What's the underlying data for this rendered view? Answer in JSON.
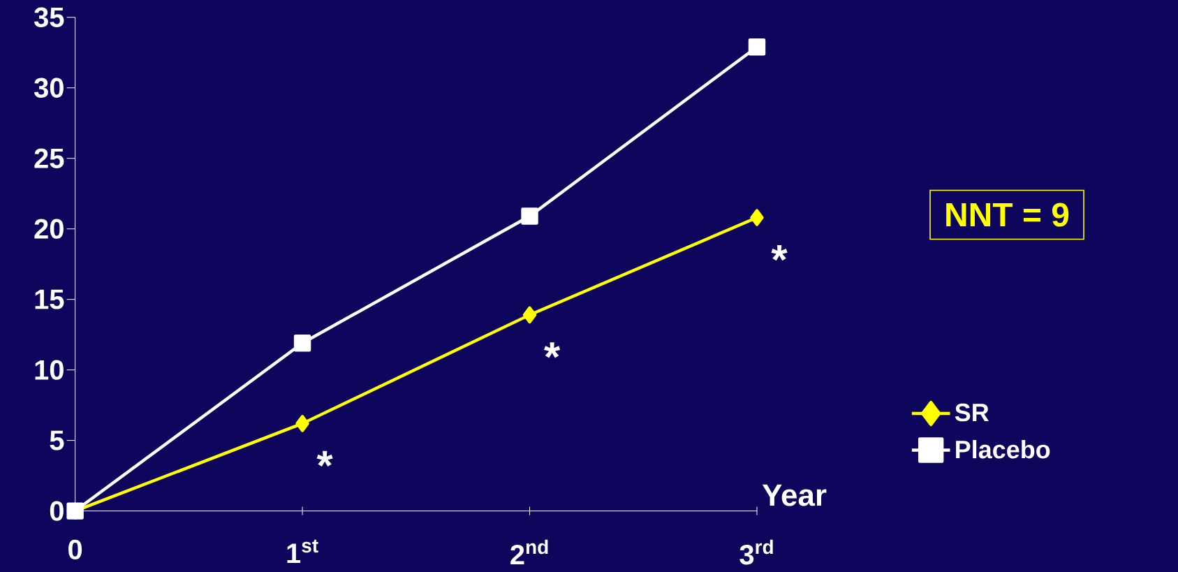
{
  "chart_data": {
    "type": "line",
    "xlabel": "Year",
    "categories": [
      "0",
      "1$^{st}$",
      "2$^{nd}$",
      "3$^{rd}$"
    ],
    "series": [
      {
        "name": "SR",
        "color": "#ffff00",
        "marker": "diamond",
        "values": [
          0,
          6.2,
          13.9,
          20.8
        ]
      },
      {
        "name": "Placebo",
        "color": "#ffffff",
        "marker": "square",
        "values": [
          0,
          11.9,
          20.9,
          32.9
        ]
      }
    ],
    "ylim": [
      0,
      35
    ],
    "yticks": [
      0,
      5,
      10,
      15,
      20,
      25,
      30,
      35
    ],
    "legend": "right",
    "grid": false,
    "line_style": "solid",
    "annotations": [
      "NNT = 9",
      "*",
      "*",
      "*"
    ]
  }
}
